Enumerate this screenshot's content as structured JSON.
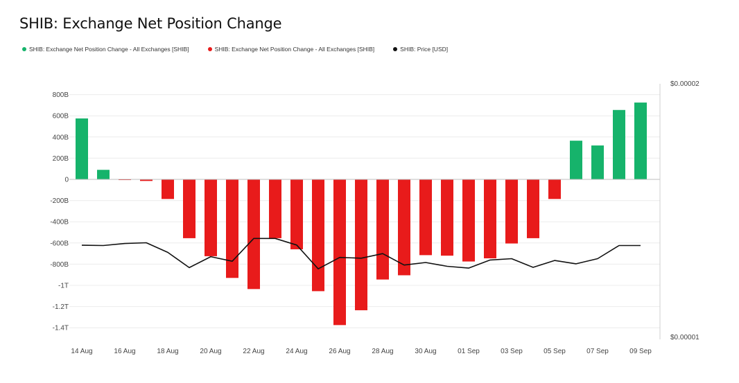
{
  "chart_data": {
    "type": "bar",
    "title": "SHIB: Exchange Net Position Change",
    "legend": [
      {
        "label": "SHIB: Exchange Net Position Change - All Exchanges [SHIB]",
        "color": "#16b36b"
      },
      {
        "label": "SHIB: Exchange Net Position Change - All Exchanges [SHIB]",
        "color": "#e81b1b"
      },
      {
        "label": "SHIB: Price [USD]",
        "color": "#111111"
      }
    ],
    "x_tick_labels": [
      "14 Aug",
      "16 Aug",
      "18 Aug",
      "20 Aug",
      "22 Aug",
      "24 Aug",
      "26 Aug",
      "28 Aug",
      "30 Aug",
      "01 Sep",
      "03 Sep",
      "05 Sep",
      "07 Sep",
      "09 Sep"
    ],
    "dates": [
      "14 Aug",
      "15 Aug",
      "16 Aug",
      "17 Aug",
      "18 Aug",
      "19 Aug",
      "20 Aug",
      "21 Aug",
      "22 Aug",
      "23 Aug",
      "24 Aug",
      "25 Aug",
      "26 Aug",
      "27 Aug",
      "28 Aug",
      "29 Aug",
      "30 Aug",
      "31 Aug",
      "01 Sep",
      "02 Sep",
      "03 Sep",
      "04 Sep",
      "05 Sep",
      "06 Sep",
      "07 Sep",
      "08 Sep",
      "09 Sep"
    ],
    "net_position_change": [
      575,
      90,
      -5,
      -15,
      -185,
      -555,
      -725,
      -930,
      -1035,
      -555,
      -660,
      -1055,
      -1375,
      -1235,
      -945,
      -905,
      -715,
      -720,
      -775,
      -745,
      -605,
      -555,
      -185,
      365,
      320,
      655,
      725
    ],
    "price": [
      1.363e-05,
      1.362e-05,
      1.37e-05,
      1.373e-05,
      1.335e-05,
      1.275e-05,
      1.318e-05,
      1.3e-05,
      1.39e-05,
      1.39e-05,
      1.364e-05,
      1.27e-05,
      1.315e-05,
      1.312e-05,
      1.33e-05,
      1.285e-05,
      1.295e-05,
      1.28e-05,
      1.273e-05,
      1.305e-05,
      1.31e-05,
      1.276e-05,
      1.303e-05,
      1.29e-05,
      1.31e-05,
      1.362e-05,
      1.362e-05
    ],
    "y_left": {
      "min": -1500,
      "max": 900,
      "ticks": [
        800,
        600,
        400,
        200,
        0,
        -200,
        -400,
        -600,
        -800,
        -1000,
        -1200,
        -1400
      ],
      "tick_labels": [
        "800B",
        "600B",
        "400B",
        "200B",
        "0",
        "-200B",
        "-400B",
        "-600B",
        "-800B",
        "-1T",
        "-1.2T",
        "-1.4T"
      ],
      "unit": "B"
    },
    "y_right": {
      "min": 1e-05,
      "max": 2e-05,
      "tick_labels": [
        "$0.00002",
        "$0.00001"
      ]
    },
    "positive_color": "#16b36b",
    "negative_color": "#e81b1b",
    "price_color": "#111111",
    "grid": true
  }
}
